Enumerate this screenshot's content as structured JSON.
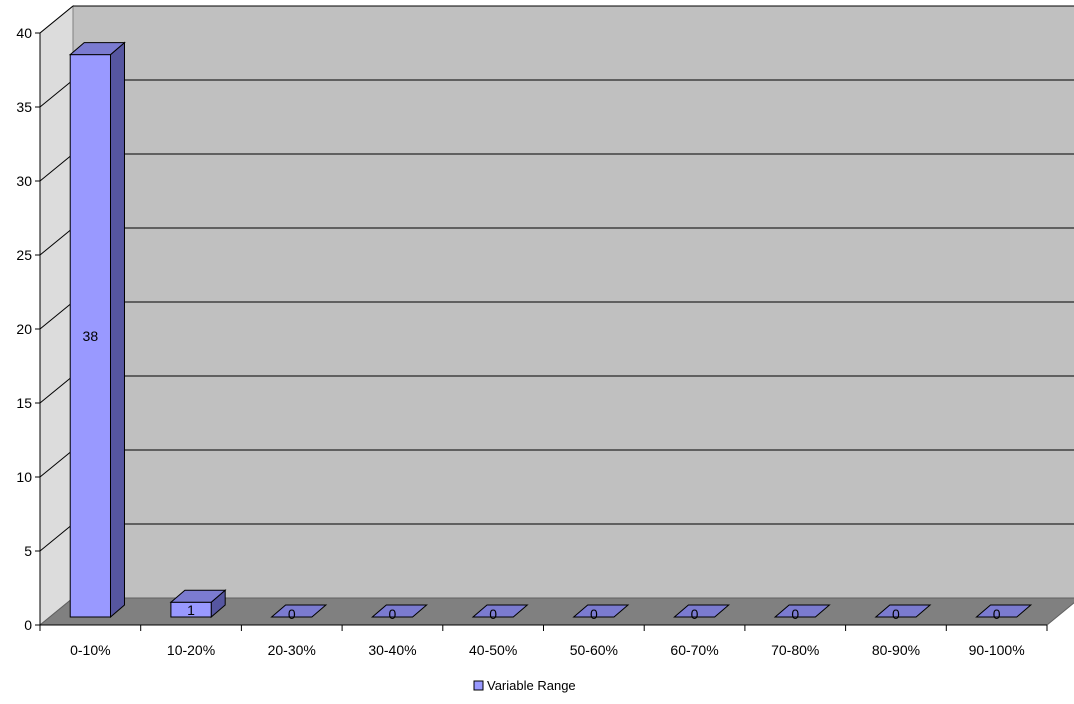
{
  "chart_data": {
    "type": "bar",
    "three_d": true,
    "categories": [
      "0-10%",
      "10-20%",
      "20-30%",
      "30-40%",
      "40-50%",
      "50-60%",
      "60-70%",
      "70-80%",
      "80-90%",
      "90-100%"
    ],
    "series": [
      {
        "name": "Variable Range",
        "values": [
          38,
          1,
          0,
          0,
          0,
          0,
          0,
          0,
          0,
          0
        ]
      }
    ],
    "ylim": [
      0,
      40
    ],
    "y_ticks": [
      0,
      5,
      10,
      15,
      20,
      25,
      30,
      35,
      40
    ],
    "grid": true,
    "legend": "bottom",
    "colors": {
      "bar_front": "#9999ff",
      "bar_side": "#5656a0",
      "bar_top": "#7b7bd0",
      "back_wall": "#c0c0c0",
      "side_wall": "#dcdcdc",
      "floor": "#808080"
    }
  }
}
